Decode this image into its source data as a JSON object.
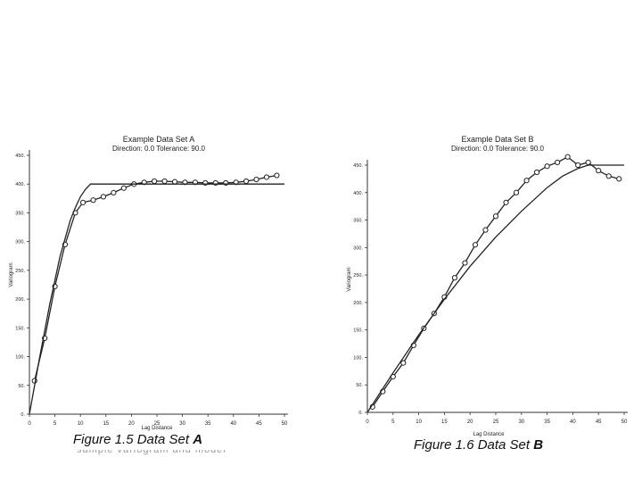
{
  "captions": {
    "a_prefix": "Figure 1.5  Data Set ",
    "a_letter": "A",
    "b_prefix": "Figure 1.6  Data Set ",
    "b_letter": "B",
    "a_subcaption_cut": "sample variogram and model"
  },
  "chart_data": [
    {
      "type": "line",
      "title": "Example Data Set A",
      "subtitle": "Direction: 0.0  Tolerance: 90.0",
      "xlabel": "Lag Distance",
      "ylabel": "Variogram",
      "xlim": [
        0,
        50
      ],
      "ylim": [
        0,
        450
      ],
      "xticks": [
        "0",
        "5",
        "10",
        "15",
        "20",
        "25",
        "30",
        "35",
        "40",
        "45",
        "50"
      ],
      "yticks": [
        "0",
        "50",
        "100",
        "150",
        "200",
        "250",
        "300",
        "350",
        "400",
        "450"
      ],
      "series": [
        {
          "style": "line+markers",
          "marker": "circle",
          "color": "#222222",
          "x": [
            1,
            3,
            5,
            7,
            9,
            10.5,
            12.5,
            14.5,
            16.5,
            18.5,
            20.5,
            22.5,
            24.5,
            26.5,
            28.5,
            30.5,
            32.5,
            34.5,
            36.5,
            38.5,
            40.5,
            42.5,
            44.5,
            46.5,
            48.5
          ],
          "y": [
            58,
            132,
            222,
            295,
            350,
            368,
            372,
            378,
            385,
            393,
            400,
            403,
            405,
            405,
            404,
            403,
            403,
            402,
            402,
            402,
            403,
            405,
            408,
            412,
            415
          ]
        },
        {
          "style": "line",
          "marker": "none",
          "color": "#222222",
          "x": [
            0,
            2,
            4,
            6,
            8,
            9,
            10,
            11,
            12,
            50
          ],
          "y": [
            0,
            98,
            192,
            274,
            337,
            359,
            378,
            391,
            400,
            400
          ]
        }
      ]
    },
    {
      "type": "line",
      "title": "Example Data Set B",
      "subtitle": "Direction: 0.0  Tolerance: 90.0",
      "xlabel": "Lag Distance",
      "ylabel": "Variogram",
      "xlim": [
        0,
        50
      ],
      "ylim": [
        0,
        450
      ],
      "xticks": [
        "0",
        "5",
        "10",
        "15",
        "20",
        "25",
        "30",
        "35",
        "40",
        "45",
        "50"
      ],
      "yticks": [
        "0",
        "50",
        "100",
        "150",
        "200",
        "250",
        "300",
        "350",
        "400",
        "450"
      ],
      "series": [
        {
          "style": "line+markers",
          "marker": "circle",
          "color": "#222222",
          "x": [
            1,
            3,
            5,
            7,
            9,
            11,
            13,
            15,
            17,
            19,
            21,
            23,
            25,
            27,
            29,
            31,
            33,
            35,
            37,
            39,
            41,
            43,
            45,
            47,
            49
          ],
          "y": [
            10,
            38,
            65,
            90,
            122,
            153,
            180,
            210,
            245,
            272,
            305,
            332,
            357,
            382,
            400,
            422,
            437,
            448,
            455,
            465,
            450,
            455,
            440,
            430,
            425
          ]
        },
        {
          "style": "line",
          "marker": "none",
          "color": "#222222",
          "x": [
            0,
            5,
            10,
            15,
            20,
            25,
            30,
            35,
            38,
            41,
            43,
            50
          ],
          "y": [
            0,
            72,
            141,
            206,
            266,
            319,
            366,
            409,
            430,
            444,
            450,
            450
          ]
        }
      ]
    }
  ]
}
